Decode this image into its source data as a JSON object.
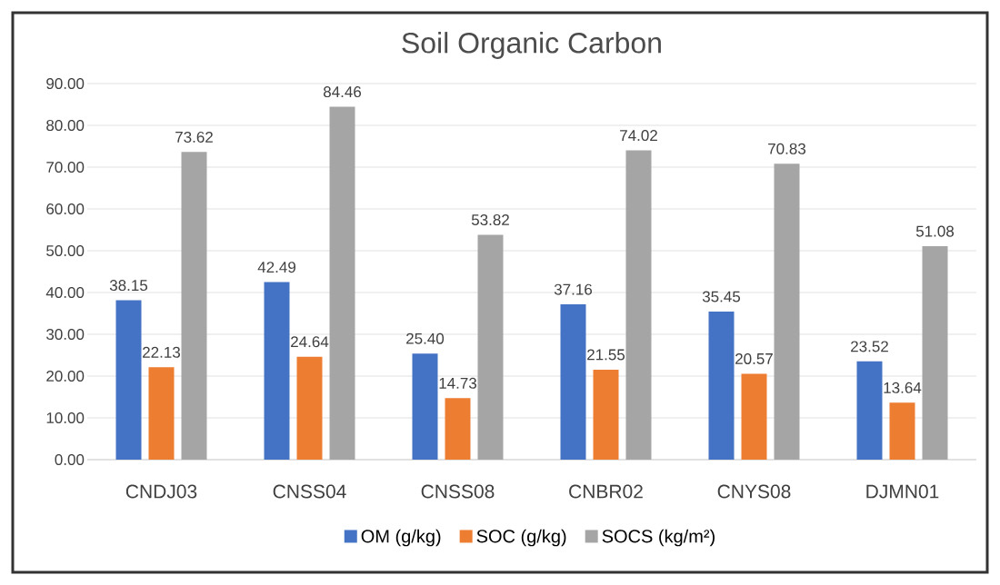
{
  "chart_data": {
    "type": "bar",
    "title": "Soil Organic Carbon",
    "categories": [
      "CNDJ03",
      "CNSS04",
      "CNSS08",
      "CNBR02",
      "CNYS08",
      "DJMN01"
    ],
    "series": [
      {
        "name": "OM (g/kg)",
        "color": "#4472c4",
        "values": [
          38.15,
          42.49,
          25.4,
          37.16,
          35.45,
          23.52
        ],
        "value_labels": [
          "38.15",
          "42.49",
          "25.40",
          "37.16",
          "35.45",
          "23.52"
        ]
      },
      {
        "name": "SOC (g/kg)",
        "color": "#ed7d31",
        "values": [
          22.13,
          24.64,
          14.73,
          21.55,
          20.57,
          13.64
        ],
        "value_labels": [
          "22.13",
          "24.64",
          "14.73",
          "21.55",
          "20.57",
          "13.64"
        ]
      },
      {
        "name": "SOCS (kg/m²)",
        "color": "#a5a5a5",
        "values": [
          73.62,
          84.46,
          53.82,
          74.02,
          70.83,
          51.08
        ],
        "value_labels": [
          "73.62",
          "84.46",
          "53.82",
          "74.02",
          "70.83",
          "51.08"
        ]
      }
    ],
    "ylim": [
      0,
      90
    ],
    "yticks": [
      {
        "value": 0,
        "label": "0.00"
      },
      {
        "value": 10,
        "label": "10.00"
      },
      {
        "value": 20,
        "label": "20.00"
      },
      {
        "value": 30,
        "label": "30.00"
      },
      {
        "value": 40,
        "label": "40.00"
      },
      {
        "value": 50,
        "label": "50.00"
      },
      {
        "value": 60,
        "label": "60.00"
      },
      {
        "value": 70,
        "label": "70.00"
      },
      {
        "value": 80,
        "label": "80.00"
      },
      {
        "value": 90,
        "label": "90.00"
      }
    ],
    "grid": "y",
    "legend": "bottom"
  }
}
